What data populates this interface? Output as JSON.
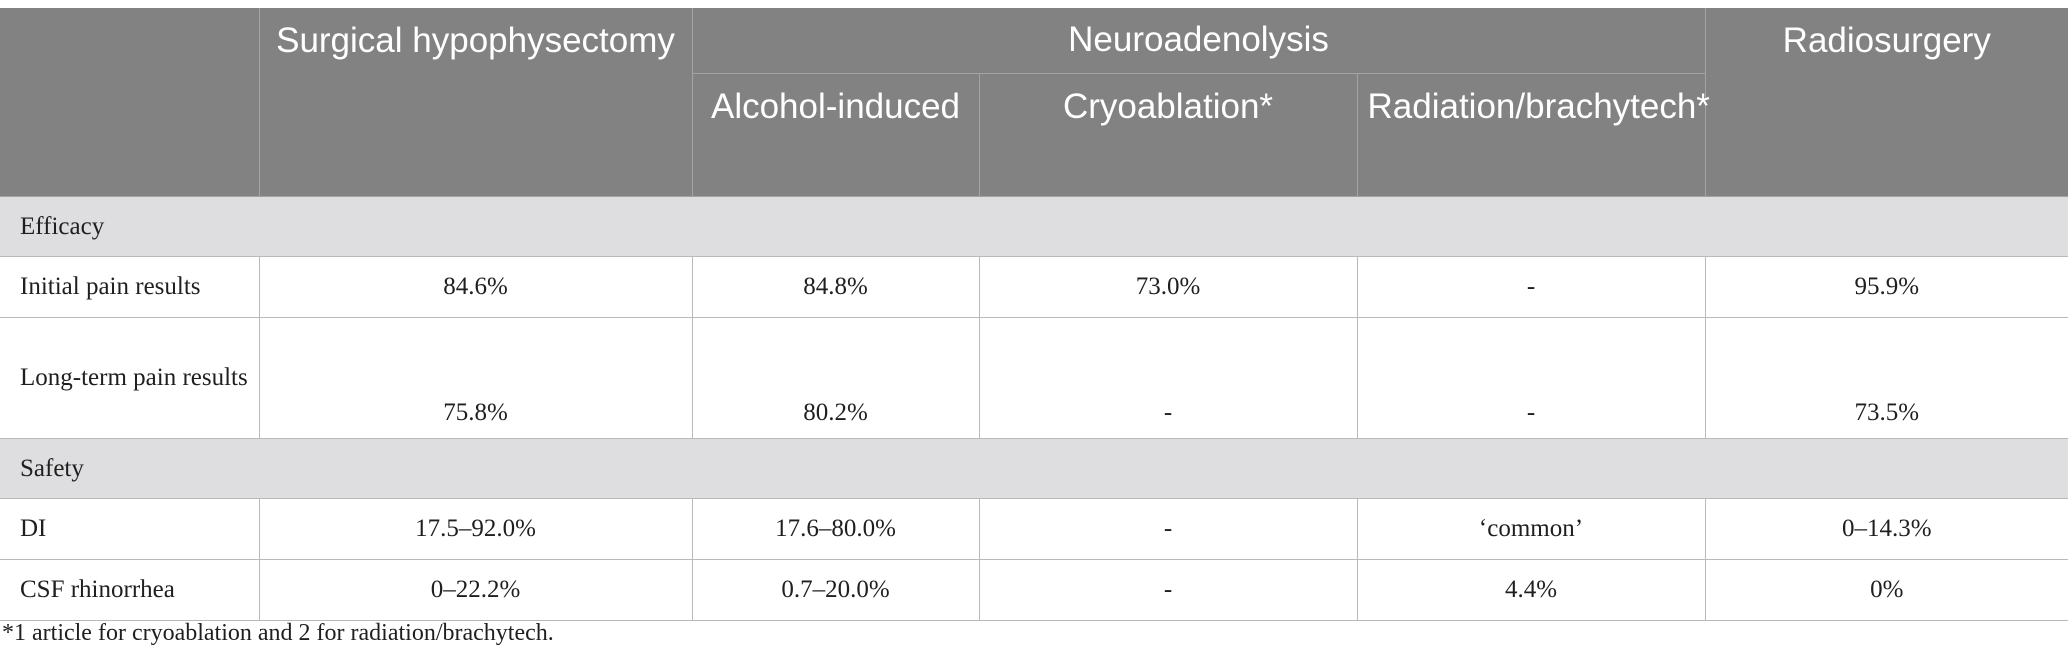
{
  "header": {
    "surgical": "Surgical hypophysectomy",
    "neuroadenolysis": "Neuroadenolysis",
    "radiosurgery": "Radiosurgery",
    "alcohol": "Alcohol-induced",
    "cryo": "Cryoablation*",
    "radiation": "Radiation/brachytech*"
  },
  "sections": {
    "efficacy": "Efficacy",
    "safety": "Safety"
  },
  "rows": {
    "initial": {
      "label": "Initial pain results",
      "surgical": "84.6%",
      "alcohol": "84.8%",
      "cryo": "73.0%",
      "radiation": "-",
      "radiosurgery": "95.9%"
    },
    "longterm": {
      "label": "Long-term pain results",
      "surgical": "75.8%",
      "alcohol": "80.2%",
      "cryo": "-",
      "radiation": "-",
      "radiosurgery": "73.5%"
    },
    "di": {
      "label": "DI",
      "surgical": "17.5–92.0%",
      "alcohol": "17.6–80.0%",
      "cryo": "-",
      "radiation": "‘common’",
      "radiosurgery": "0–14.3%"
    },
    "csf": {
      "label": "CSF rhinorrhea",
      "surgical": "0–22.2%",
      "alcohol": "0.7–20.0%",
      "cryo": "-",
      "radiation": "4.4%",
      "radiosurgery": "0%"
    }
  },
  "footnote": "*1 article for cryoablation and 2 for radiation/brachytech."
}
